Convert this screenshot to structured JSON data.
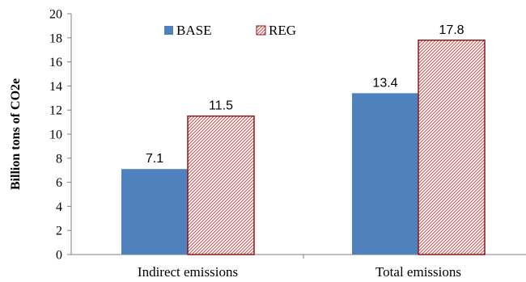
{
  "chart_data": {
    "type": "bar",
    "title": "",
    "xlabel": "",
    "ylabel": "Billion tons of CO2e",
    "ylim": [
      0,
      20
    ],
    "yticks": [
      0,
      2,
      4,
      6,
      8,
      10,
      12,
      14,
      16,
      18,
      20
    ],
    "categories": [
      "Indirect emissions",
      "Total emissions"
    ],
    "series": [
      {
        "name": "BASE",
        "values": [
          7.1,
          13.4
        ],
        "color": "#4f81bd",
        "pattern": "solid"
      },
      {
        "name": "REG",
        "values": [
          11.5,
          17.8
        ],
        "color": "#c0504d",
        "pattern": "diagonal-hatch"
      }
    ],
    "data_labels": [
      [
        "7.1",
        "13.4"
      ],
      [
        "11.5",
        "17.8"
      ]
    ],
    "legend": {
      "position": "top",
      "orientation": "horizontal"
    },
    "grid": false
  }
}
